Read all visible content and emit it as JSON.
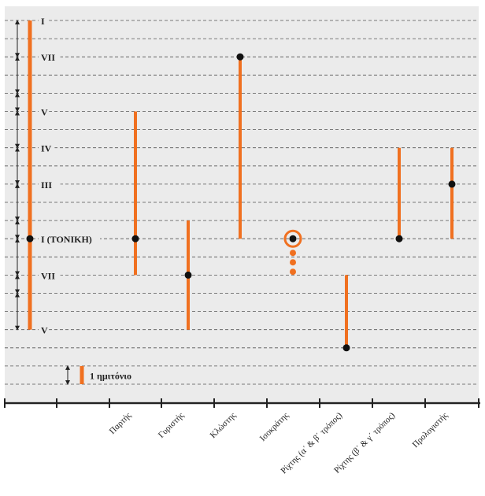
{
  "colors": {
    "background": "#ebebeb",
    "bar": "#f07020",
    "dot": "#111111",
    "grid": "#555555",
    "axis": "#222222",
    "label": "#222222"
  },
  "degree_labels": [
    {
      "text": "I",
      "pos": 0
    },
    {
      "text": "VII",
      "pos": 2
    },
    {
      "text": "V",
      "pos": 5
    },
    {
      "text": "IV",
      "pos": 7
    },
    {
      "text": "III",
      "pos": 9
    },
    {
      "text": "I (ΤΟΝΙΚΗ)",
      "pos": 12
    },
    {
      "text": "VII",
      "pos": 14
    },
    {
      "text": "V",
      "pos": 17
    }
  ],
  "scale": {
    "top": 0,
    "bottom": 17,
    "tonic": 12,
    "row_count": 21,
    "left_bar": {
      "from": 0,
      "to": 17
    },
    "interval_arrows": [
      [
        0,
        2
      ],
      [
        2,
        4
      ],
      [
        4,
        5
      ],
      [
        5,
        7
      ],
      [
        7,
        9
      ],
      [
        9,
        11
      ],
      [
        11,
        12
      ],
      [
        12,
        14
      ],
      [
        14,
        15
      ],
      [
        15,
        17
      ]
    ]
  },
  "legend": {
    "label": "1 ημιτόνιο",
    "span": [
      19,
      20
    ]
  },
  "voices": [
    {
      "name": "Παρτής",
      "from": 5,
      "to": 14,
      "dot": 12
    },
    {
      "name": "Γυριστής",
      "from": 11,
      "to": 17,
      "dot": 14
    },
    {
      "name": "Κλώστης",
      "from": 2,
      "to": 12,
      "dot": 2
    },
    {
      "name": "Ισοκράτης",
      "from": null,
      "to": null,
      "dot": 12,
      "special": "isokratis"
    },
    {
      "name": "Ρίχτης (α΄ & β΄ τρόπος)",
      "from": 14,
      "to": 18,
      "dot": 18
    },
    {
      "name": "Ρίχτης (β΄ & γ΄ τρόπος)",
      "from": 7,
      "to": 12,
      "dot": 12
    },
    {
      "name": "Προλογιστής",
      "from": 7,
      "to": 12,
      "dot": 9
    }
  ]
}
